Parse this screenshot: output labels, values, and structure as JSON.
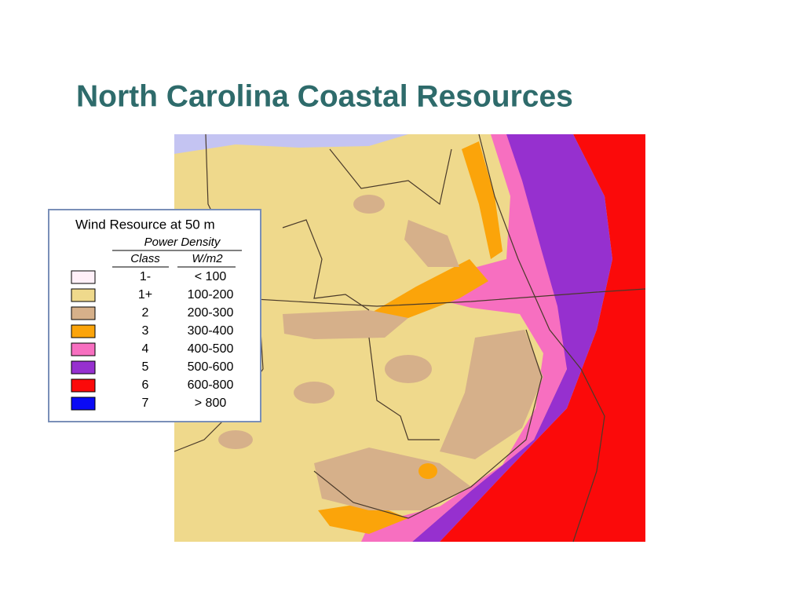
{
  "title": "North Carolina Coastal Resources",
  "legend": {
    "title": "Wind Resource at 50 m",
    "subtitle": "Power Density",
    "columns": [
      "Class",
      "W/m2"
    ],
    "rows": [
      {
        "class": "1-",
        "range": "< 100",
        "color": "#fff0f8"
      },
      {
        "class": "1+",
        "range": "100-200",
        "color": "#efd98c"
      },
      {
        "class": "2",
        "range": "200-300",
        "color": "#d6b08a"
      },
      {
        "class": "3",
        "range": "300-400",
        "color": "#fba40a"
      },
      {
        "class": "4",
        "range": "400-500",
        "color": "#f76fc0"
      },
      {
        "class": "5",
        "range": "500-600",
        "color": "#9630cf"
      },
      {
        "class": "6",
        "range": "600-800",
        "color": "#fb0a0a"
      },
      {
        "class": "7",
        "range": "> 800",
        "color": "#0a0af5"
      }
    ]
  }
}
